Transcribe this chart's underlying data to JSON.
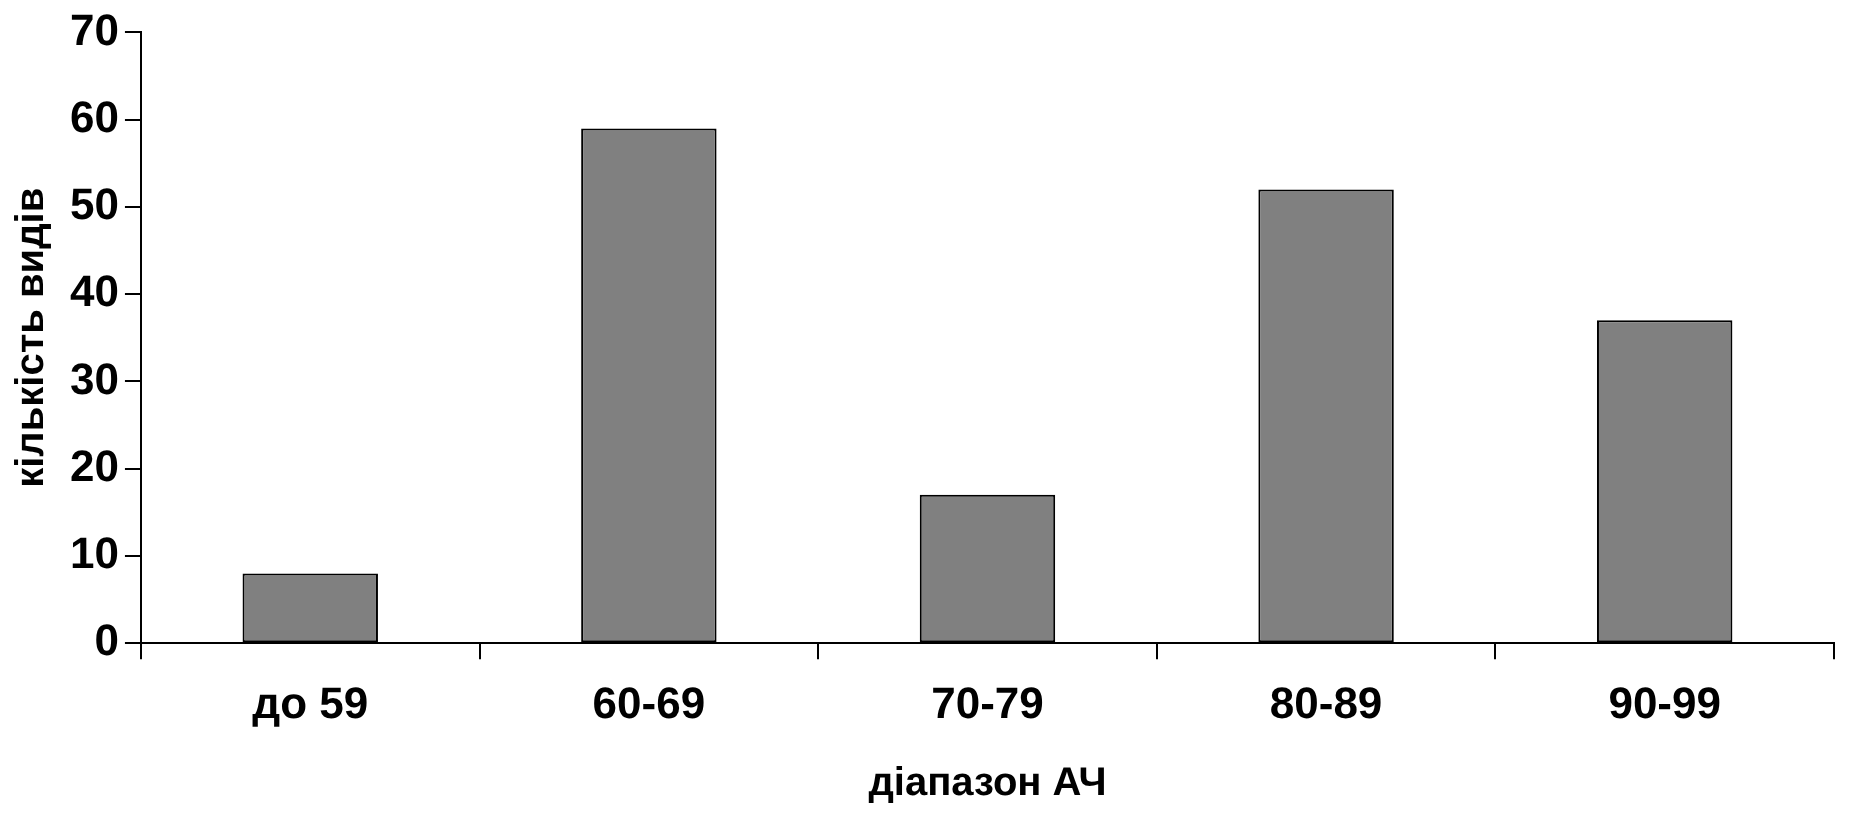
{
  "chart_data": {
    "type": "bar",
    "xlabel": "діапазон АЧ",
    "ylabel": "кількість видів",
    "categories": [
      "до 59",
      "60-69",
      "70-79",
      "80-89",
      "90-99"
    ],
    "values": [
      8,
      59,
      17,
      52,
      37
    ],
    "color": "#808080",
    "ylim": [
      0,
      70
    ],
    "yticks": [
      0,
      10,
      20,
      30,
      40,
      50,
      60,
      70
    ],
    "grid": false,
    "legend": false
  }
}
